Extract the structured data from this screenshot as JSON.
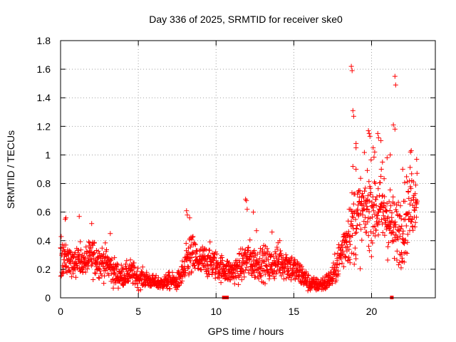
{
  "chart_data": {
    "type": "scatter",
    "title": "Day 336 of 2025, SRMTID for receiver ske0",
    "xlabel": "GPS time / hours",
    "ylabel": "SRMTID / TECUs",
    "xlim": [
      0,
      24.1
    ],
    "ylim": [
      0,
      1.8
    ],
    "xticks": [
      0,
      5,
      10,
      15,
      20
    ],
    "xtick_labels": [
      "0",
      "5",
      "10",
      "15",
      "20"
    ],
    "yticks": [
      0,
      0.2,
      0.4,
      0.6,
      0.8,
      1,
      1.2,
      1.4,
      1.6,
      1.8
    ],
    "ytick_labels": [
      "0",
      "0.2",
      "0.4",
      "0.6",
      "0.8",
      "1",
      "1.2",
      "1.4",
      "1.6",
      "1.8"
    ],
    "grid": true,
    "marker": "plus",
    "series": [
      {
        "name": "SRMTID",
        "color": "#ff0000",
        "profile": [
          [
            0.0,
            0.3,
            0.12
          ],
          [
            0.5,
            0.26,
            0.08
          ],
          [
            1.0,
            0.27,
            0.08
          ],
          [
            1.5,
            0.24,
            0.07
          ],
          [
            2.0,
            0.29,
            0.09
          ],
          [
            2.5,
            0.26,
            0.08
          ],
          [
            3.0,
            0.24,
            0.08
          ],
          [
            3.5,
            0.17,
            0.07
          ],
          [
            4.0,
            0.15,
            0.05
          ],
          [
            4.5,
            0.18,
            0.06
          ],
          [
            5.0,
            0.14,
            0.05
          ],
          [
            5.5,
            0.13,
            0.04
          ],
          [
            6.0,
            0.11,
            0.03
          ],
          [
            6.5,
            0.1,
            0.03
          ],
          [
            7.0,
            0.12,
            0.04
          ],
          [
            7.5,
            0.11,
            0.04
          ],
          [
            8.0,
            0.2,
            0.08
          ],
          [
            8.3,
            0.3,
            0.12
          ],
          [
            8.7,
            0.27,
            0.09
          ],
          [
            9.0,
            0.25,
            0.08
          ],
          [
            9.5,
            0.26,
            0.08
          ],
          [
            10.0,
            0.23,
            0.07
          ],
          [
            10.5,
            0.2,
            0.06
          ],
          [
            11.0,
            0.18,
            0.06
          ],
          [
            11.5,
            0.21,
            0.07
          ],
          [
            12.0,
            0.27,
            0.1
          ],
          [
            12.5,
            0.24,
            0.08
          ],
          [
            13.0,
            0.25,
            0.08
          ],
          [
            13.5,
            0.22,
            0.08
          ],
          [
            14.0,
            0.26,
            0.08
          ],
          [
            14.5,
            0.24,
            0.08
          ],
          [
            15.0,
            0.2,
            0.07
          ],
          [
            15.5,
            0.16,
            0.06
          ],
          [
            16.0,
            0.1,
            0.04
          ],
          [
            16.5,
            0.09,
            0.03
          ],
          [
            17.0,
            0.1,
            0.04
          ],
          [
            17.5,
            0.15,
            0.05
          ],
          [
            18.0,
            0.3,
            0.1
          ],
          [
            18.5,
            0.45,
            0.15
          ],
          [
            19.0,
            0.55,
            0.2
          ],
          [
            19.5,
            0.6,
            0.2
          ],
          [
            20.0,
            0.65,
            0.2
          ],
          [
            20.5,
            0.62,
            0.2
          ],
          [
            21.0,
            0.58,
            0.2
          ],
          [
            21.5,
            0.45,
            0.15
          ],
          [
            22.0,
            0.52,
            0.18
          ],
          [
            22.5,
            0.65,
            0.18
          ],
          [
            22.9,
            0.72,
            0.15
          ]
        ],
        "outliers": [
          [
            0.3,
            0.55
          ],
          [
            0.35,
            0.56
          ],
          [
            1.2,
            0.57
          ],
          [
            2.0,
            0.52
          ],
          [
            3.2,
            0.45
          ],
          [
            8.1,
            0.61
          ],
          [
            8.15,
            0.58
          ],
          [
            8.3,
            0.56
          ],
          [
            11.9,
            0.69
          ],
          [
            11.95,
            0.68
          ],
          [
            12.0,
            0.62
          ],
          [
            12.4,
            0.6
          ],
          [
            12.6,
            0.47
          ],
          [
            13.6,
            0.46
          ],
          [
            14.1,
            0.4
          ],
          [
            18.7,
            1.62
          ],
          [
            18.75,
            1.59
          ],
          [
            18.8,
            1.31
          ],
          [
            18.85,
            1.27
          ],
          [
            19.0,
            1.08
          ],
          [
            19.0,
            1.05
          ],
          [
            18.8,
            0.92
          ],
          [
            19.0,
            0.9
          ],
          [
            19.8,
            1.17
          ],
          [
            19.85,
            1.15
          ],
          [
            19.9,
            1.13
          ],
          [
            20.1,
            1.05
          ],
          [
            20.2,
            1.02
          ],
          [
            20.4,
            1.15
          ],
          [
            20.45,
            1.12
          ],
          [
            20.6,
            1.1
          ],
          [
            20.7,
            0.95
          ],
          [
            21.0,
            0.98
          ],
          [
            21.2,
            1.0
          ],
          [
            21.5,
            1.55
          ],
          [
            21.55,
            1.49
          ],
          [
            21.4,
            1.21
          ],
          [
            21.5,
            1.18
          ],
          [
            22.5,
            1.02
          ],
          [
            22.55,
            1.03
          ],
          [
            22.9,
            0.97
          ],
          [
            22.0,
            0.9
          ],
          [
            21.9,
            0.21
          ],
          [
            22.1,
            0.25
          ]
        ],
        "zeros": [
          10.5,
          10.7,
          21.3
        ]
      }
    ]
  }
}
